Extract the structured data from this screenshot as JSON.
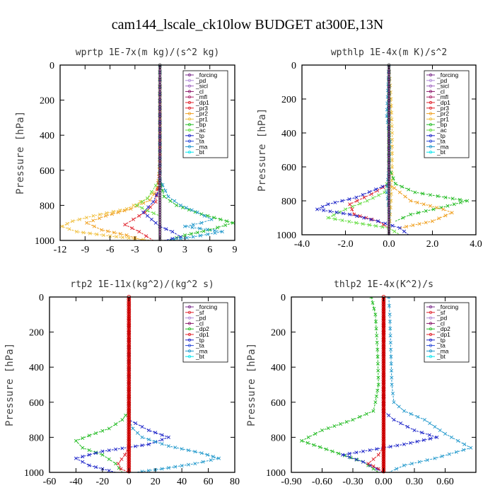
{
  "figure": {
    "title": "cam144_lscale_ck10low  BUDGET at300E,13N"
  },
  "colors": {
    "forcing": "#7b2d8b",
    "pd": "#b08ad8",
    "sicl": "#a066c0",
    "cl": "#8b1a6b",
    "mfl": "#aa2266",
    "dp1": "#e0202a",
    "dp2": "#22bb22",
    "pr3": "#e0202a",
    "pr2": "#f0a020",
    "pr1": "#f0c040",
    "bp": "#22bb22",
    "ac": "#66dd44",
    "tp": "#1a22c8",
    "ta": "#2a4ad8",
    "ma": "#2299cc",
    "bt": "#00e5ee",
    "sf": "#e0202a",
    "red_bar": "#cc0000"
  },
  "chart_data": [
    {
      "type": "line",
      "title": "wprtp   1E-7x(m kg)/(s^2 kg)",
      "ylabel": "Pressure [hPa]",
      "xlim": [
        -12,
        9
      ],
      "ylim": [
        1000,
        0
      ],
      "xticks": [
        -12,
        -9,
        -6,
        -3,
        0,
        3,
        6,
        9
      ],
      "xtick_labels": [
        "-12",
        "-9",
        "-6",
        "-3",
        "0",
        "3",
        "6",
        "9"
      ],
      "yticks": [
        0,
        200,
        400,
        600,
        800,
        1000
      ],
      "legend_position": "top-right",
      "legend": [
        "_forcing",
        "_pd",
        "_sicl",
        "_cl",
        "_mfl",
        "_dp1",
        "_pr3",
        "_pr2",
        "_pr1",
        "_bp",
        "_ac",
        "_tp",
        "_ta",
        "_ma",
        "_bt"
      ],
      "series": [
        {
          "name": "_pr1",
          "color": "pr1",
          "x": [
            0,
            0,
            0,
            -0.1,
            -0.3,
            -1.5,
            -4,
            -8,
            -10.5,
            -11.8,
            -10,
            -6,
            -3,
            -1
          ],
          "y": [
            0,
            300,
            500,
            620,
            700,
            760,
            820,
            860,
            890,
            920,
            950,
            975,
            990,
            1000
          ]
        },
        {
          "name": "_pr2",
          "color": "pr2",
          "x": [
            0,
            0,
            -0.2,
            -1.2,
            -3.5,
            -6.5,
            -8.8,
            -7,
            -4,
            -2
          ],
          "y": [
            0,
            500,
            700,
            770,
            820,
            860,
            900,
            940,
            970,
            1000
          ]
        },
        {
          "name": "_dp1",
          "color": "dp1",
          "x": [
            0,
            0,
            -0.5,
            -1.8,
            -3.2,
            -4.2,
            -2.5,
            -0.8
          ],
          "y": [
            0,
            600,
            780,
            840,
            880,
            910,
            950,
            1000
          ]
        },
        {
          "name": "_bp",
          "color": "bp",
          "x": [
            0,
            0,
            0.5,
            2,
            5,
            8.8,
            6,
            3,
            1
          ],
          "y": [
            0,
            650,
            750,
            800,
            850,
            900,
            940,
            970,
            1000
          ]
        },
        {
          "name": "_ac",
          "color": "ac",
          "x": [
            0,
            0,
            -1.5,
            -2.8,
            -1.5,
            0
          ],
          "y": [
            0,
            650,
            760,
            800,
            830,
            860
          ]
        },
        {
          "name": "_tp",
          "color": "tp",
          "x": [
            0,
            0,
            -0.8,
            -2,
            -1,
            0,
            1.5,
            2.5,
            0.5
          ],
          "y": [
            0,
            700,
            780,
            840,
            880,
            920,
            950,
            980,
            1000
          ]
        },
        {
          "name": "_ma",
          "color": "ma",
          "x": [
            0,
            0,
            1,
            2.5,
            4.5,
            6.2,
            5,
            3,
            7.5,
            4,
            1
          ],
          "y": [
            0,
            650,
            750,
            800,
            840,
            880,
            900,
            920,
            950,
            980,
            1000
          ]
        }
      ]
    },
    {
      "type": "line",
      "title": "wpthlp   1E-4x(m K)/s^2",
      "ylabel": "Pressure [hPa]",
      "xlim": [
        -4,
        4
      ],
      "ylim": [
        1000,
        0
      ],
      "xticks": [
        -4,
        -2,
        0,
        2,
        4
      ],
      "xtick_labels": [
        "-4.0",
        "-2.0",
        "0.0",
        "2.0",
        "4.0"
      ],
      "yticks": [
        0,
        200,
        400,
        600,
        800,
        1000
      ],
      "legend_position": "top-right",
      "legend": [
        "_forcing",
        "_pd",
        "_sicl",
        "_cl",
        "_mfl",
        "_dp1",
        "_pr3",
        "_pr2",
        "_pr1",
        "_bp",
        "_ac",
        "_tp",
        "_ta",
        "_ma",
        "_bt"
      ],
      "series": [
        {
          "name": "_pr1",
          "color": "pr1",
          "x": [
            0,
            0.1,
            0.15,
            0.15,
            0.1,
            0
          ],
          "y": [
            0,
            200,
            400,
            600,
            800,
            1000
          ]
        },
        {
          "name": "_bp",
          "color": "bp",
          "x": [
            0,
            0,
            0.3,
            1.2,
            2.6,
            3.6,
            2.4,
            1,
            0.3
          ],
          "y": [
            0,
            600,
            700,
            750,
            780,
            800,
            840,
            880,
            920
          ]
        },
        {
          "name": "_ac",
          "color": "ac",
          "x": [
            0,
            0,
            -0.2,
            -1,
            -2,
            -2.8,
            -1.5,
            0,
            0.5
          ],
          "y": [
            0,
            650,
            750,
            800,
            850,
            900,
            930,
            960,
            1000
          ]
        },
        {
          "name": "_pr2",
          "color": "pr2",
          "x": [
            0,
            0,
            1,
            2.5,
            2.9,
            2,
            0.5
          ],
          "y": [
            0,
            700,
            800,
            850,
            870,
            920,
            960
          ]
        },
        {
          "name": "_dp1",
          "color": "dp1",
          "x": [
            0,
            0,
            -0.8,
            -1.8,
            -1.6,
            -0.5,
            0
          ],
          "y": [
            0,
            700,
            760,
            820,
            880,
            920,
            960
          ]
        },
        {
          "name": "_tp",
          "color": "tp",
          "x": [
            0,
            0,
            -1.5,
            -2.8,
            -3.3,
            -1.8,
            -0.5,
            0.5,
            0.9
          ],
          "y": [
            0,
            700,
            780,
            820,
            850,
            880,
            920,
            960,
            1000
          ]
        },
        {
          "name": "_ma",
          "color": "ma",
          "x": [
            0,
            -0.05,
            -0.1,
            0.05,
            0,
            -0.1,
            0.05
          ],
          "y": [
            0,
            150,
            300,
            450,
            600,
            750,
            900
          ]
        }
      ]
    },
    {
      "type": "line",
      "title": "rtp2   1E-11x(kg^2)/(kg^2 s)",
      "ylabel": "Pressure [hPa]",
      "xlim": [
        -60,
        80
      ],
      "ylim": [
        1000,
        0
      ],
      "xticks": [
        -60,
        -40,
        -20,
        0,
        20,
        40,
        60,
        80
      ],
      "xtick_labels": [
        "-60",
        "-40",
        "-20",
        "0",
        "20",
        "40",
        "60",
        "80"
      ],
      "yticks": [
        0,
        200,
        400,
        600,
        800,
        1000
      ],
      "legend_position": "top-right",
      "legend": [
        "_forcing",
        "_sf",
        "_pd",
        "_cl",
        "_dp2",
        "_dp1",
        "_tp",
        "_ta",
        "_ma",
        "_bt"
      ],
      "series": [
        {
          "name": "_dp2",
          "color": "dp2",
          "x": [
            0,
            0,
            -5,
            -15,
            -30,
            -40,
            -35,
            -20,
            -10,
            -5
          ],
          "y": [
            0,
            650,
            700,
            750,
            790,
            820,
            860,
            900,
            950,
            1000
          ]
        },
        {
          "name": "_tp",
          "color": "tp",
          "x": [
            0,
            0,
            5,
            15,
            30,
            15,
            -20,
            -40,
            -30,
            -10
          ],
          "y": [
            0,
            700,
            720,
            760,
            800,
            840,
            880,
            920,
            960,
            1000
          ]
        },
        {
          "name": "_ma",
          "color": "ma",
          "x": [
            0,
            0,
            3,
            10,
            30,
            55,
            68,
            50,
            25,
            5
          ],
          "y": [
            0,
            700,
            750,
            800,
            850,
            890,
            920,
            950,
            980,
            1000
          ]
        },
        {
          "name": "_dp1",
          "color": "dp1",
          "x": [
            0,
            0,
            -3,
            -8,
            -6,
            0
          ],
          "y": [
            0,
            850,
            900,
            950,
            980,
            1000
          ]
        }
      ]
    },
    {
      "type": "line",
      "title": "thlp2   1E-4x(K^2)/s",
      "ylabel": "Pressure [hPa]",
      "xlim": [
        -0.9,
        0.9
      ],
      "ylim": [
        1000,
        0
      ],
      "xticks": [
        -0.9,
        -0.6,
        -0.3,
        0,
        0.3,
        0.6
      ],
      "xtick_labels": [
        "-0.90",
        "-0.60",
        "-0.30",
        "0.00",
        "0.30",
        "0.60"
      ],
      "yticks": [
        0,
        200,
        400,
        600,
        800,
        1000
      ],
      "legend_position": "top-right",
      "legend": [
        "_forcing",
        "_sf",
        "_pd",
        "_cl",
        "_dp2",
        "_dp1",
        "_tp",
        "_ta",
        "_ma",
        "_bt"
      ],
      "series": [
        {
          "name": "_dp2",
          "color": "dp2",
          "x": [
            -0.12,
            -0.08,
            -0.06,
            -0.05,
            -0.08,
            -0.1,
            -0.3,
            -0.6,
            -0.8,
            -0.5,
            -0.2,
            -0.05
          ],
          "y": [
            0,
            100,
            300,
            500,
            600,
            650,
            700,
            760,
            820,
            880,
            940,
            1000
          ]
        },
        {
          "name": "_ma",
          "color": "ma",
          "x": [
            0.05,
            0.06,
            0.07,
            0.08,
            0.1,
            0.2,
            0.4,
            0.6,
            0.85,
            0.5,
            0.2,
            0.05
          ],
          "y": [
            0,
            100,
            300,
            500,
            600,
            650,
            700,
            780,
            860,
            920,
            960,
            1000
          ]
        },
        {
          "name": "_tp",
          "color": "tp",
          "x": [
            0,
            0,
            0.1,
            0.3,
            0.52,
            0.2,
            -0.2,
            -0.4,
            -0.2,
            0
          ],
          "y": [
            0,
            650,
            700,
            760,
            800,
            840,
            880,
            900,
            940,
            1000
          ]
        },
        {
          "name": "_dp1",
          "color": "dp1",
          "x": [
            0,
            0,
            -0.05,
            -0.15,
            -0.05,
            0
          ],
          "y": [
            0,
            850,
            900,
            950,
            980,
            1000
          ]
        }
      ]
    }
  ]
}
